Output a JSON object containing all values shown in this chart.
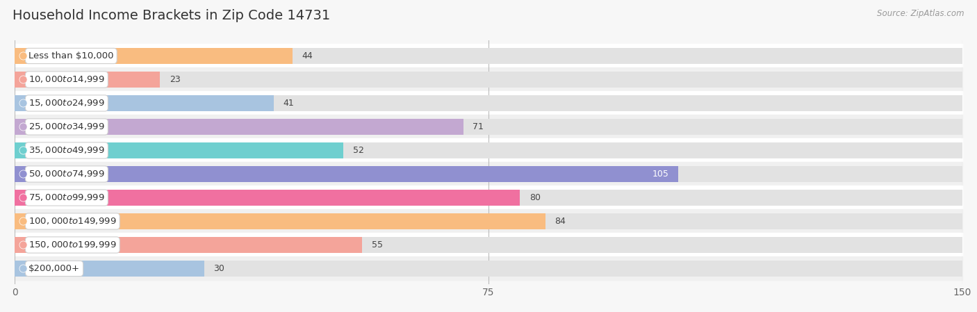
{
  "title": "Household Income Brackets in Zip Code 14731",
  "source": "Source: ZipAtlas.com",
  "categories": [
    "Less than $10,000",
    "$10,000 to $14,999",
    "$15,000 to $24,999",
    "$25,000 to $34,999",
    "$35,000 to $49,999",
    "$50,000 to $74,999",
    "$75,000 to $99,999",
    "$100,000 to $149,999",
    "$150,000 to $199,999",
    "$200,000+"
  ],
  "values": [
    44,
    23,
    41,
    71,
    52,
    105,
    80,
    84,
    55,
    30
  ],
  "colors": [
    "#f9bc80",
    "#f4a49a",
    "#a8c4e0",
    "#c3a8d1",
    "#6fcfcf",
    "#9090d0",
    "#f070a0",
    "#f9bc80",
    "#f4a49a",
    "#a8c4e0"
  ],
  "xlim": [
    0,
    150
  ],
  "xticks": [
    0,
    75,
    150
  ],
  "background_color": "#f7f7f7",
  "row_bg_even": "#ffffff",
  "row_bg_odd": "#f0f0f0",
  "bar_bg_color": "#e2e2e2",
  "title_fontsize": 14,
  "label_fontsize": 9.5,
  "value_fontsize": 9
}
